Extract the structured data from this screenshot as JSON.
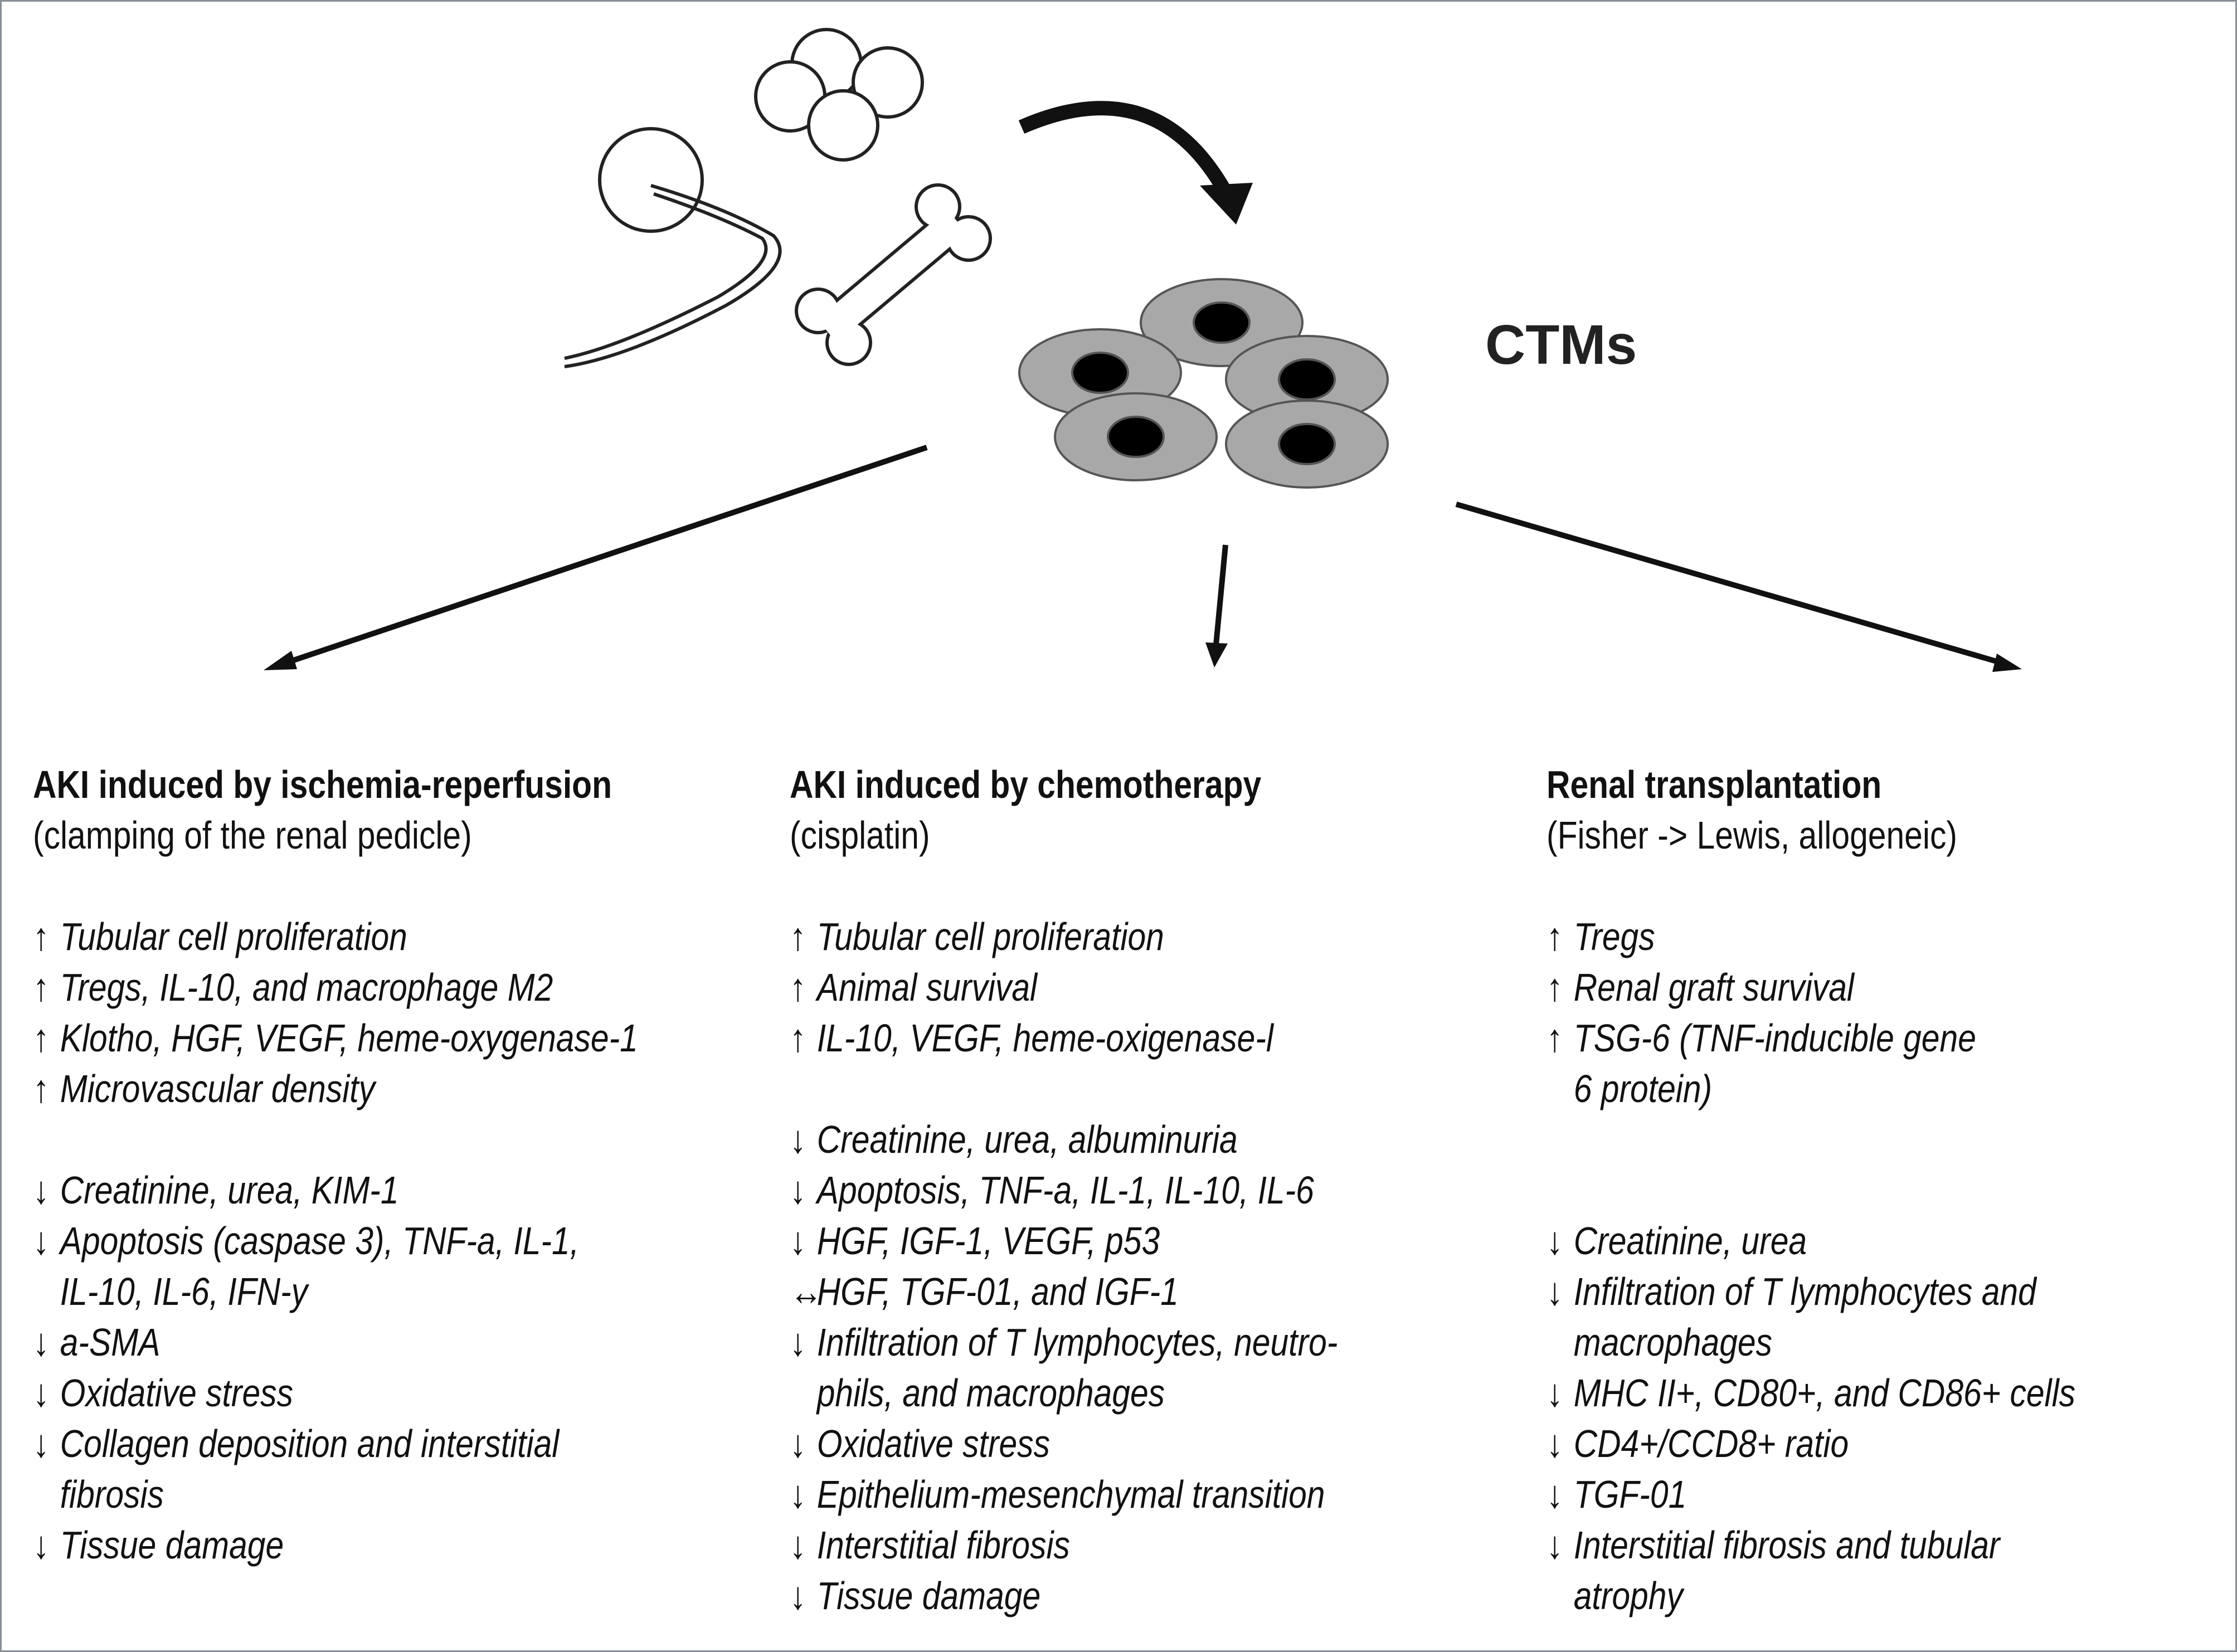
{
  "figure": {
    "cells_label": "CTMs",
    "colors": {
      "cell_fill": "#a8a8a8",
      "nucleus": "#000000",
      "frame": "#8a8f96"
    }
  },
  "columns": [
    {
      "title": "AKI induced by ischemia-reperfusion",
      "subtitle": "(clamping of the renal pedicle)",
      "increased": [
        {
          "dir": "up",
          "lines": [
            "Tubular cell proliferation"
          ]
        },
        {
          "dir": "up",
          "lines": [
            "Tregs, IL-10, and macrophage M2"
          ]
        },
        {
          "dir": "up",
          "lines": [
            "Klotho, HGF, VEGF, heme-oxygenase-1"
          ]
        },
        {
          "dir": "up",
          "lines": [
            "Microvascular density"
          ]
        }
      ],
      "decreased": [
        {
          "dir": "down",
          "lines": [
            "Creatinine, urea, KIM-1"
          ]
        },
        {
          "dir": "down",
          "lines": [
            "Apoptosis (caspase 3), TNF-a, IL-1,",
            "IL-10, IL-6, IFN-y"
          ]
        },
        {
          "dir": "down",
          "lines": [
            "a-SMA"
          ]
        },
        {
          "dir": "down",
          "lines": [
            "Oxidative stress"
          ]
        },
        {
          "dir": "down",
          "lines": [
            "Collagen deposition and interstitial",
            "fibrosis"
          ]
        },
        {
          "dir": "down",
          "lines": [
            "Tissue damage"
          ]
        }
      ]
    },
    {
      "title": "AKI induced by chemotherapy",
      "subtitle": "(cisplatin)",
      "increased": [
        {
          "dir": "up",
          "lines": [
            "Tubular cell proliferation"
          ]
        },
        {
          "dir": "up",
          "lines": [
            "Animal survival"
          ]
        },
        {
          "dir": "up",
          "lines": [
            "IL-10, VEGF, heme-oxigenase-l"
          ]
        }
      ],
      "decreased": [
        {
          "dir": "down",
          "lines": [
            "Creatinine, urea, albuminuria"
          ]
        },
        {
          "dir": "down",
          "lines": [
            "Apoptosis, TNF-a, IL-1, IL-10, IL-6"
          ]
        },
        {
          "dir": "down",
          "lines": [
            "HGF, IGF-1, VEGF, p53"
          ]
        },
        {
          "dir": "both",
          "lines": [
            "HGF, TGF-01, and IGF-1"
          ]
        },
        {
          "dir": "down",
          "lines": [
            "Infiltration of T lymphocytes, neutro-",
            "phils, and macrophages"
          ]
        },
        {
          "dir": "down",
          "lines": [
            "Oxidative stress"
          ]
        },
        {
          "dir": "down",
          "lines": [
            "Epithelium-mesenchymal transition"
          ]
        },
        {
          "dir": "down",
          "lines": [
            "Interstitial fibrosis"
          ]
        },
        {
          "dir": "down",
          "lines": [
            "Tissue damage"
          ]
        }
      ]
    },
    {
      "title": "Renal transplantation",
      "subtitle": "(Fisher -> Lewis, allogeneic)",
      "increased": [
        {
          "dir": "up",
          "lines": [
            "Tregs"
          ]
        },
        {
          "dir": "up",
          "lines": [
            "Renal graft survival"
          ]
        },
        {
          "dir": "up",
          "lines": [
            "TSG-6 (TNF-inducible gene",
            "6 protein)"
          ]
        }
      ],
      "decreased": [
        {
          "dir": "down",
          "lines": [
            "Creatinine, urea"
          ]
        },
        {
          "dir": "down",
          "lines": [
            "Infiltration of T lymphocytes and",
            "macrophages"
          ]
        },
        {
          "dir": "down",
          "lines": [
            "MHC II+, CD80+, and CD86+ cells"
          ]
        },
        {
          "dir": "down",
          "lines": [
            "CD4+/CCD8+ ratio"
          ]
        },
        {
          "dir": "down",
          "lines": [
            "TGF-01"
          ]
        },
        {
          "dir": "down",
          "lines": [
            "Interstitial fibrosis and tubular",
            "atrophy"
          ]
        }
      ]
    }
  ]
}
